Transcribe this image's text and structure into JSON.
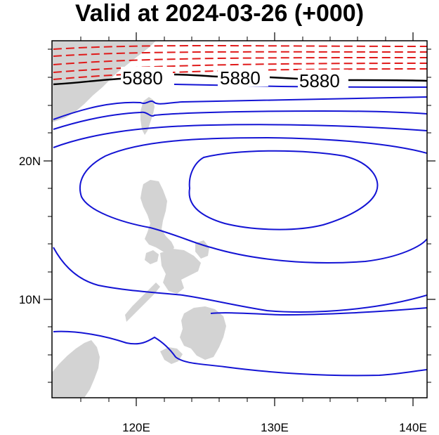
{
  "map": {
    "title": "Valid at 2024-03-26 (+000)",
    "lon_ticks": [
      "120E",
      "130E",
      "140E"
    ],
    "lat_ticks": [
      "20N",
      "10N"
    ],
    "contour_labels": [
      "5880",
      "5880",
      "5880"
    ],
    "colors": {
      "land": "#d3d3d3",
      "contour_low": "#1414d4",
      "contour_ref": "#000000",
      "contour_high": "#e01a1a"
    }
  }
}
